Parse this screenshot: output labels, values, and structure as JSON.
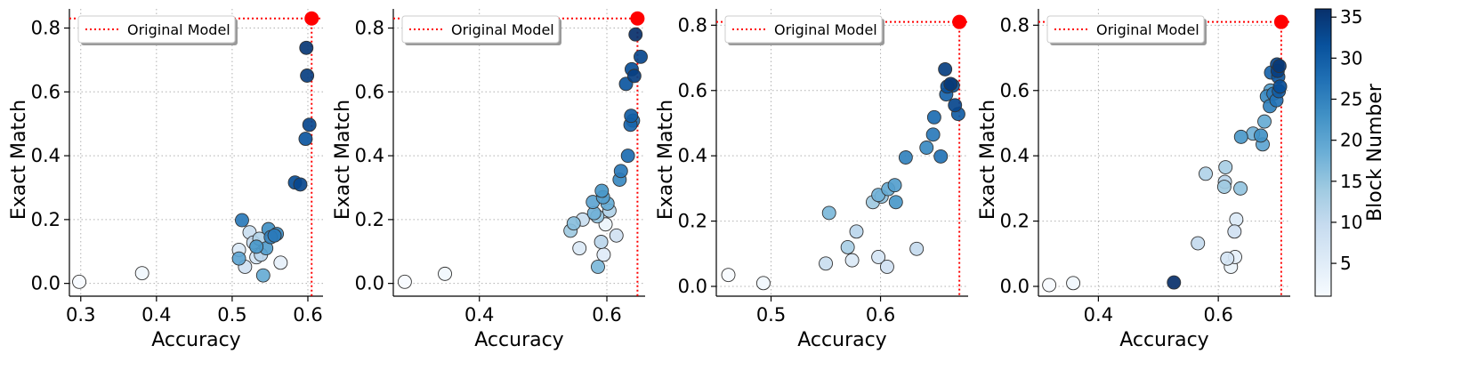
{
  "chart_data": [
    {
      "type": "scatter",
      "xlabel": "Accuracy",
      "ylabel": "Exact Match",
      "xlim": [
        0.285,
        0.62
      ],
      "ylim": [
        -0.04,
        0.86
      ],
      "xticks": [
        0.3,
        0.4,
        0.5,
        0.6
      ],
      "xtick_labels": [
        "0.3",
        "0.4",
        "0.5",
        "0.6"
      ],
      "yticks": [
        0.0,
        0.2,
        0.4,
        0.6,
        0.8
      ],
      "ytick_labels": [
        "0.0",
        "0.2",
        "0.4",
        "0.6",
        "0.8"
      ],
      "legend": {
        "label": "Original Model",
        "location": "upper-left"
      },
      "original_model": {
        "x": 0.605,
        "y": 0.83
      },
      "points": [
        {
          "x": 0.298,
          "y": 0.005,
          "block": 1
        },
        {
          "x": 0.381,
          "y": 0.032,
          "block": 2
        },
        {
          "x": 0.509,
          "y": 0.105,
          "block": 6
        },
        {
          "x": 0.517,
          "y": 0.052,
          "block": 8
        },
        {
          "x": 0.523,
          "y": 0.16,
          "block": 9
        },
        {
          "x": 0.528,
          "y": 0.128,
          "block": 10
        },
        {
          "x": 0.532,
          "y": 0.082,
          "block": 7
        },
        {
          "x": 0.538,
          "y": 0.09,
          "block": 11
        },
        {
          "x": 0.536,
          "y": 0.14,
          "block": 12
        },
        {
          "x": 0.541,
          "y": 0.025,
          "block": 19
        },
        {
          "x": 0.545,
          "y": 0.11,
          "block": 21
        },
        {
          "x": 0.548,
          "y": 0.17,
          "block": 23
        },
        {
          "x": 0.551,
          "y": 0.145,
          "block": 25
        },
        {
          "x": 0.559,
          "y": 0.155,
          "block": 24
        },
        {
          "x": 0.556,
          "y": 0.15,
          "block": 26
        },
        {
          "x": 0.564,
          "y": 0.065,
          "block": 4
        },
        {
          "x": 0.509,
          "y": 0.078,
          "block": 20
        },
        {
          "x": 0.513,
          "y": 0.198,
          "block": 26
        },
        {
          "x": 0.532,
          "y": 0.115,
          "block": 22
        },
        {
          "x": 0.583,
          "y": 0.316,
          "block": 32
        },
        {
          "x": 0.59,
          "y": 0.31,
          "block": 33
        },
        {
          "x": 0.597,
          "y": 0.453,
          "block": 31
        },
        {
          "x": 0.602,
          "y": 0.497,
          "block": 33
        },
        {
          "x": 0.599,
          "y": 0.651,
          "block": 34
        },
        {
          "x": 0.598,
          "y": 0.738,
          "block": 35
        }
      ]
    },
    {
      "type": "scatter",
      "xlabel": "Accuracy",
      "ylabel": "Exact Match",
      "xlim": [
        0.265,
        0.66
      ],
      "ylim": [
        -0.04,
        0.86
      ],
      "xticks": [
        0.4,
        0.6
      ],
      "xtick_labels": [
        "0.4",
        "0.6"
      ],
      "yticks": [
        0.0,
        0.2,
        0.4,
        0.6,
        0.8
      ],
      "ytick_labels": [
        "0.0",
        "0.2",
        "0.4",
        "0.6",
        "0.8"
      ],
      "legend": {
        "label": "Original Model",
        "location": "upper-left"
      },
      "original_model": {
        "x": 0.648,
        "y": 0.83
      },
      "points": [
        {
          "x": 0.283,
          "y": 0.005,
          "block": 1
        },
        {
          "x": 0.346,
          "y": 0.03,
          "block": 2
        },
        {
          "x": 0.543,
          "y": 0.165,
          "block": 14
        },
        {
          "x": 0.548,
          "y": 0.188,
          "block": 16
        },
        {
          "x": 0.557,
          "y": 0.11,
          "block": 6
        },
        {
          "x": 0.562,
          "y": 0.2,
          "block": 9
        },
        {
          "x": 0.578,
          "y": 0.255,
          "block": 20
        },
        {
          "x": 0.58,
          "y": 0.22,
          "block": 18
        },
        {
          "x": 0.586,
          "y": 0.052,
          "block": 17
        },
        {
          "x": 0.585,
          "y": 0.21,
          "block": 15
        },
        {
          "x": 0.591,
          "y": 0.13,
          "block": 11
        },
        {
          "x": 0.592,
          "y": 0.29,
          "block": 22
        },
        {
          "x": 0.594,
          "y": 0.27,
          "block": 21
        },
        {
          "x": 0.595,
          "y": 0.09,
          "block": 5
        },
        {
          "x": 0.598,
          "y": 0.185,
          "block": 3
        },
        {
          "x": 0.601,
          "y": 0.25,
          "block": 19
        },
        {
          "x": 0.604,
          "y": 0.228,
          "block": 12
        },
        {
          "x": 0.615,
          "y": 0.15,
          "block": 8
        },
        {
          "x": 0.62,
          "y": 0.325,
          "block": 24
        },
        {
          "x": 0.622,
          "y": 0.352,
          "block": 26
        },
        {
          "x": 0.633,
          "y": 0.4,
          "block": 28
        },
        {
          "x": 0.63,
          "y": 0.625,
          "block": 31
        },
        {
          "x": 0.637,
          "y": 0.497,
          "block": 29
        },
        {
          "x": 0.638,
          "y": 0.525,
          "block": 30
        },
        {
          "x": 0.641,
          "y": 0.51,
          "block": 27
        },
        {
          "x": 0.639,
          "y": 0.671,
          "block": 32
        },
        {
          "x": 0.643,
          "y": 0.65,
          "block": 34
        },
        {
          "x": 0.645,
          "y": 0.78,
          "block": 36
        },
        {
          "x": 0.653,
          "y": 0.71,
          "block": 33
        }
      ]
    },
    {
      "type": "scatter",
      "xlabel": "Accuracy",
      "ylabel": "Exact Match",
      "xlim": [
        0.45,
        0.68
      ],
      "ylim": [
        -0.03,
        0.85
      ],
      "xticks": [
        0.5,
        0.6
      ],
      "xtick_labels": [
        "0.5",
        "0.6"
      ],
      "yticks": [
        0.0,
        0.2,
        0.4,
        0.6,
        0.8
      ],
      "ytick_labels": [
        "0.0",
        "0.2",
        "0.4",
        "0.6",
        "0.8"
      ],
      "legend": {
        "label": "Original Model",
        "location": "upper-left"
      },
      "original_model": {
        "x": 0.672,
        "y": 0.81
      },
      "points": [
        {
          "x": 0.461,
          "y": 0.035,
          "block": 1
        },
        {
          "x": 0.493,
          "y": 0.01,
          "block": 2
        },
        {
          "x": 0.55,
          "y": 0.07,
          "block": 9
        },
        {
          "x": 0.553,
          "y": 0.225,
          "block": 17
        },
        {
          "x": 0.57,
          "y": 0.12,
          "block": 13
        },
        {
          "x": 0.574,
          "y": 0.08,
          "block": 6
        },
        {
          "x": 0.578,
          "y": 0.168,
          "block": 11
        },
        {
          "x": 0.593,
          "y": 0.258,
          "block": 14
        },
        {
          "x": 0.598,
          "y": 0.09,
          "block": 7
        },
        {
          "x": 0.598,
          "y": 0.28,
          "block": 18
        },
        {
          "x": 0.601,
          "y": 0.275,
          "block": 15
        },
        {
          "x": 0.606,
          "y": 0.06,
          "block": 8
        },
        {
          "x": 0.607,
          "y": 0.298,
          "block": 19
        },
        {
          "x": 0.613,
          "y": 0.31,
          "block": 21
        },
        {
          "x": 0.614,
          "y": 0.258,
          "block": 22
        },
        {
          "x": 0.623,
          "y": 0.395,
          "block": 25
        },
        {
          "x": 0.633,
          "y": 0.115,
          "block": 10
        },
        {
          "x": 0.642,
          "y": 0.425,
          "block": 24
        },
        {
          "x": 0.648,
          "y": 0.465,
          "block": 26
        },
        {
          "x": 0.649,
          "y": 0.518,
          "block": 28
        },
        {
          "x": 0.655,
          "y": 0.398,
          "block": 27
        },
        {
          "x": 0.659,
          "y": 0.665,
          "block": 34
        },
        {
          "x": 0.66,
          "y": 0.588,
          "block": 29
        },
        {
          "x": 0.661,
          "y": 0.612,
          "block": 32
        },
        {
          "x": 0.664,
          "y": 0.62,
          "block": 35
        },
        {
          "x": 0.666,
          "y": 0.615,
          "block": 31
        },
        {
          "x": 0.668,
          "y": 0.555,
          "block": 33
        },
        {
          "x": 0.671,
          "y": 0.528,
          "block": 30
        }
      ]
    },
    {
      "type": "scatter",
      "xlabel": "Accuracy",
      "ylabel": "Exact Match",
      "xlim": [
        0.3,
        0.72
      ],
      "ylim": [
        -0.03,
        0.85
      ],
      "xticks": [
        0.4,
        0.6
      ],
      "xtick_labels": [
        "0.4",
        "0.6"
      ],
      "yticks": [
        0.0,
        0.2,
        0.4,
        0.6,
        0.8
      ],
      "ytick_labels": [
        "0.0",
        "0.2",
        "0.4",
        "0.6",
        "0.8"
      ],
      "legend": {
        "label": "Original Model",
        "location": "upper-left"
      },
      "original_model": {
        "x": 0.705,
        "y": 0.81
      },
      "points": [
        {
          "x": 0.318,
          "y": 0.004,
          "block": 1
        },
        {
          "x": 0.358,
          "y": 0.01,
          "block": 2
        },
        {
          "x": 0.526,
          "y": 0.012,
          "block": 36
        },
        {
          "x": 0.566,
          "y": 0.132,
          "block": 10
        },
        {
          "x": 0.579,
          "y": 0.345,
          "block": 12
        },
        {
          "x": 0.61,
          "y": 0.305,
          "block": 14
        },
        {
          "x": 0.612,
          "y": 0.365,
          "block": 13
        },
        {
          "x": 0.611,
          "y": 0.32,
          "block": 11
        },
        {
          "x": 0.615,
          "y": 0.085,
          "block": 7
        },
        {
          "x": 0.621,
          "y": 0.06,
          "block": 3
        },
        {
          "x": 0.627,
          "y": 0.168,
          "block": 8
        },
        {
          "x": 0.628,
          "y": 0.09,
          "block": 4
        },
        {
          "x": 0.63,
          "y": 0.205,
          "block": 6
        },
        {
          "x": 0.637,
          "y": 0.3,
          "block": 15
        },
        {
          "x": 0.638,
          "y": 0.458,
          "block": 22
        },
        {
          "x": 0.658,
          "y": 0.468,
          "block": 18
        },
        {
          "x": 0.671,
          "y": 0.462,
          "block": 23
        },
        {
          "x": 0.674,
          "y": 0.435,
          "block": 20
        },
        {
          "x": 0.677,
          "y": 0.505,
          "block": 19
        },
        {
          "x": 0.681,
          "y": 0.582,
          "block": 24
        },
        {
          "x": 0.686,
          "y": 0.552,
          "block": 25
        },
        {
          "x": 0.687,
          "y": 0.6,
          "block": 21
        },
        {
          "x": 0.688,
          "y": 0.655,
          "block": 29
        },
        {
          "x": 0.692,
          "y": 0.59,
          "block": 26
        },
        {
          "x": 0.697,
          "y": 0.57,
          "block": 27
        },
        {
          "x": 0.698,
          "y": 0.68,
          "block": 33
        },
        {
          "x": 0.699,
          "y": 0.66,
          "block": 34
        },
        {
          "x": 0.7,
          "y": 0.642,
          "block": 31
        },
        {
          "x": 0.701,
          "y": 0.598,
          "block": 30
        },
        {
          "x": 0.702,
          "y": 0.675,
          "block": 35
        },
        {
          "x": 0.703,
          "y": 0.612,
          "block": 32
        }
      ]
    }
  ],
  "colorbar": {
    "label": "Block Number",
    "min": 1,
    "max": 36,
    "ticks": [
      5,
      10,
      15,
      20,
      25,
      30,
      35
    ],
    "tick_labels": [
      "5",
      "10",
      "15",
      "20",
      "25",
      "30",
      "35"
    ],
    "colormap_stops": [
      "#f7fbff",
      "#deebf7",
      "#c6dbef",
      "#9ecae1",
      "#6baed6",
      "#4292c6",
      "#2171b5",
      "#08519c",
      "#08306b"
    ]
  },
  "colors": {
    "original_model": "#ff0000",
    "grid": "#b0b0b0",
    "marker_edge": "#333333"
  }
}
